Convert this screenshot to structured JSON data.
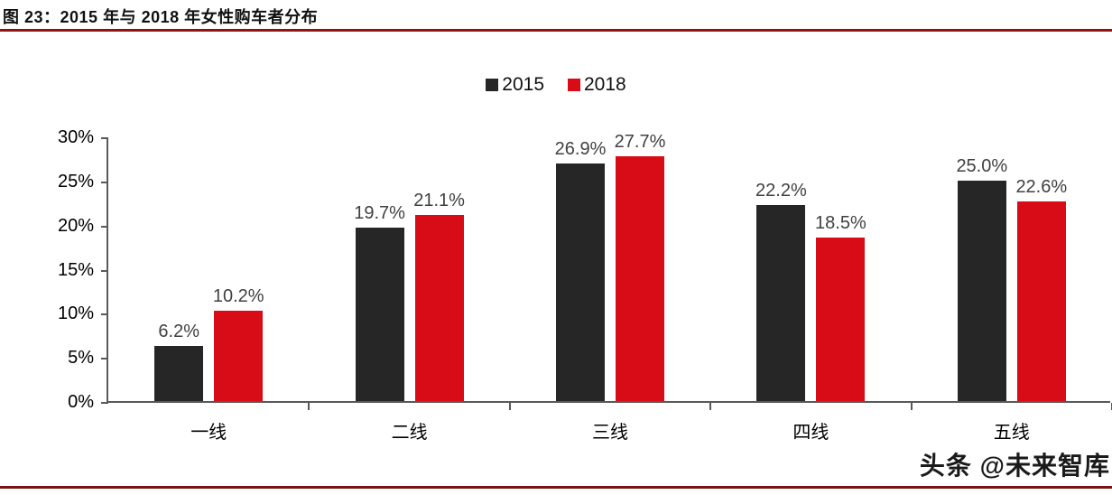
{
  "title": "图 23：2015 年与 2018 年女性购车者分布",
  "watermark": "头条 @未来智库",
  "colors": {
    "bar_2015": "#262626",
    "bar_2018": "#d70c17",
    "rule_top": "#8e1313",
    "rule_bottom": "#7c1416",
    "axis": "#595959",
    "value_label": "#404040",
    "tick_label": "#000000"
  },
  "chart_data": {
    "type": "bar",
    "title": "2015 年与 2018 年女性购车者分布",
    "categories": [
      "一线",
      "二线",
      "三线",
      "四线",
      "五线"
    ],
    "series": [
      {
        "name": "2015",
        "color_key": "bar_2015",
        "values": [
          6.2,
          19.7,
          26.9,
          22.2,
          25.0
        ],
        "labels": [
          "6.2%",
          "19.7%",
          "26.9%",
          "22.2%",
          "25.0%"
        ]
      },
      {
        "name": "2018",
        "color_key": "bar_2018",
        "values": [
          10.2,
          21.1,
          27.7,
          18.5,
          22.6
        ],
        "labels": [
          "10.2%",
          "21.1%",
          "27.7%",
          "18.5%",
          "22.6%"
        ]
      }
    ],
    "xlabel": "",
    "ylabel": "",
    "ylim": [
      0,
      30
    ],
    "ytick_step": 5,
    "yticks": [
      "0%",
      "5%",
      "10%",
      "15%",
      "20%",
      "25%",
      "30%"
    ],
    "legend_position": "top-center",
    "grid": false
  }
}
